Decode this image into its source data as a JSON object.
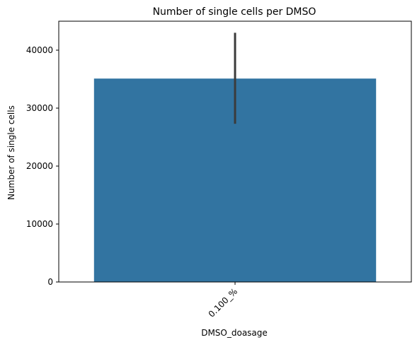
{
  "chart_data": {
    "type": "bar",
    "title": "Number of single cells per DMSO",
    "xlabel": "DMSO_doasage",
    "ylabel": "Number of single cells",
    "categories": [
      "0.100_%"
    ],
    "values": [
      35100
    ],
    "error_bars": [
      {
        "low": 27300,
        "high": 43000
      }
    ],
    "ylim": [
      0,
      45000
    ],
    "yticks": [
      0,
      10000,
      20000,
      30000,
      40000
    ],
    "x_tick_rotation_deg": 45,
    "grid": false,
    "colors": {
      "bar": "#3274a1",
      "error_bar": "#3b3b3b"
    }
  }
}
